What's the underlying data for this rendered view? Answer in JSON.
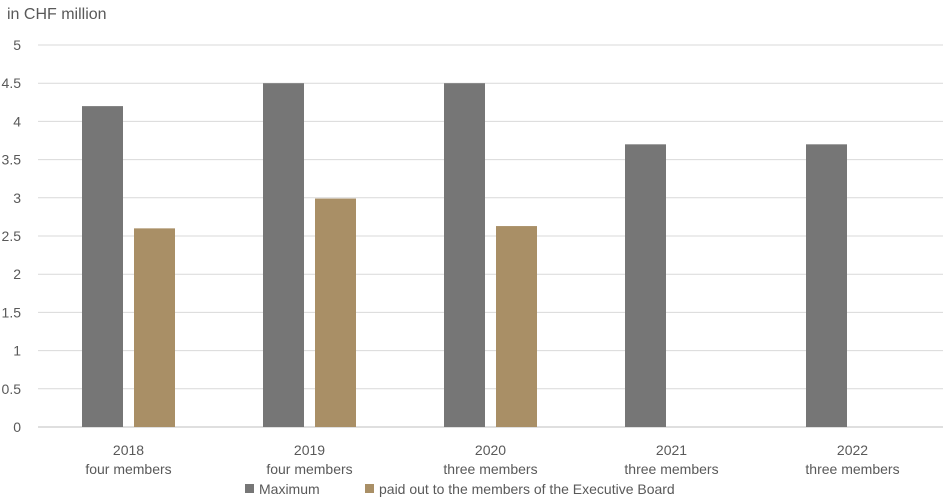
{
  "chart_data": {
    "type": "bar",
    "ylabel": "in CHF million",
    "ylim": [
      0,
      5
    ],
    "y_ticks": [
      "0",
      "0.5",
      "1",
      "1.5",
      "2",
      "2.5",
      "3",
      "3.5",
      "4",
      "4.5",
      "5"
    ],
    "categories": [
      {
        "year": "2018",
        "members": "four members"
      },
      {
        "year": "2019",
        "members": "four members"
      },
      {
        "year": "2020",
        "members": "three members"
      },
      {
        "year": "2021",
        "members": "three members"
      },
      {
        "year": "2022",
        "members": "three members"
      }
    ],
    "series": [
      {
        "name": "Maximum",
        "color": "#767676",
        "values": [
          4.2,
          4.5,
          4.5,
          3.7,
          3.7
        ]
      },
      {
        "name": "paid out to the members of the Executive Board",
        "color": "#A98F66",
        "values": [
          2.6,
          2.99,
          2.63,
          null,
          null
        ]
      }
    ],
    "grid": true,
    "legend_position": "bottom"
  }
}
